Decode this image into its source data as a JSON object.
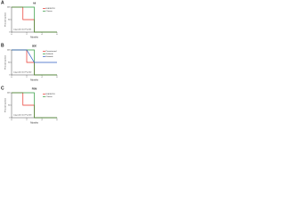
{
  "chart_data": [
    {
      "type": "line",
      "panel": "A",
      "title": "All",
      "xlabel": "Months",
      "ylabel": "Percent survival",
      "annotation": "Log-rank test P=0.01",
      "x": [
        0,
        1.5,
        1.5,
        3,
        3,
        6
      ],
      "series": [
        {
          "name": "EGFR-TKI",
          "color": "#e8322a",
          "values": [
            100,
            100,
            50,
            50,
            0,
            0
          ]
        },
        {
          "name": "Chemo",
          "color": "#2e9a3c",
          "values": [
            100,
            100,
            100,
            100,
            0,
            0
          ]
        }
      ],
      "xlim": [
        0,
        6
      ],
      "xticks": [
        0,
        2,
        4,
        6
      ],
      "ylim": [
        0,
        100
      ],
      "yticks": [
        0,
        50,
        100
      ]
    },
    {
      "type": "line",
      "panel": "B",
      "title": "SDE",
      "xlabel": "Months",
      "ylabel": "Percent survival",
      "annotation": "Log-rank test P=0.02",
      "x": [
        0,
        2,
        2,
        3,
        3,
        6
      ],
      "series": [
        {
          "name": "Pemetrexed",
          "color": "#e8322a",
          "values": [
            100,
            100,
            50,
            50,
            0,
            0
          ]
        },
        {
          "name": "Gefitinib",
          "color": "#2e9a3c",
          "values": [
            100,
            100,
            100,
            100,
            0,
            0
          ]
        },
        {
          "name": "Erlotinib",
          "color": "#2f5fc4",
          "values": [
            100,
            100,
            100,
            50,
            50,
            50
          ]
        }
      ],
      "xlim": [
        0,
        6
      ],
      "xticks": [
        0,
        2,
        4,
        6
      ],
      "ylim": [
        0,
        100
      ],
      "yticks": [
        0,
        50,
        100
      ]
    },
    {
      "type": "line",
      "panel": "C",
      "title": "PSM",
      "xlabel": "Months",
      "ylabel": "Percent survival",
      "annotation": "Log-rank test P=0.03",
      "x": [
        0,
        1.5,
        1.5,
        3,
        3,
        6
      ],
      "series": [
        {
          "name": "EGFR-TKI",
          "color": "#e8322a",
          "values": [
            100,
            100,
            50,
            50,
            0,
            0
          ]
        },
        {
          "name": "Chemo",
          "color": "#2e9a3c",
          "values": [
            100,
            100,
            100,
            100,
            0,
            0
          ]
        }
      ],
      "xlim": [
        0,
        6
      ],
      "xticks": [
        0,
        2,
        4,
        6
      ],
      "ylim": [
        0,
        100
      ],
      "yticks": [
        0,
        50,
        100
      ]
    }
  ]
}
